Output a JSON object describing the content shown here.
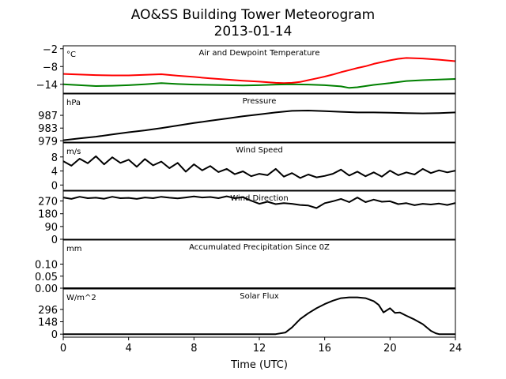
{
  "figure": {
    "title_line1": "AO&SS Building Tower Meteorogram",
    "title_line2": "2013-01-14",
    "xlabel": "Time (UTC)",
    "x_ticks": [
      "0",
      "4",
      "8",
      "12",
      "16",
      "20",
      "24"
    ],
    "xlim": [
      0,
      24
    ]
  },
  "chart_data": [
    {
      "type": "line",
      "title": "Air and Dewpoint Temperature",
      "unit_label": "°C",
      "ylim": [
        -17,
        -1
      ],
      "y_ticks": [
        -2,
        -8,
        -14
      ],
      "y_tick_labels": [
        "−2",
        "−8",
        "−14"
      ],
      "series": [
        {
          "color": "#ff0000",
          "x": [
            0,
            1,
            2,
            3,
            4,
            5,
            6,
            7,
            8,
            9,
            10,
            11,
            12,
            13,
            13.5,
            14,
            14.5,
            15,
            15.5,
            16,
            16.5,
            17,
            17.5,
            18,
            18.5,
            19,
            19.5,
            20,
            20.5,
            21,
            22,
            23,
            24
          ],
          "y": [
            -10.5,
            -10.7,
            -10.9,
            -11.0,
            -11.0,
            -10.8,
            -10.6,
            -11.1,
            -11.5,
            -12.0,
            -12.4,
            -12.8,
            -13.1,
            -13.5,
            -13.6,
            -13.5,
            -13.2,
            -12.6,
            -12.0,
            -11.4,
            -10.7,
            -9.9,
            -9.2,
            -8.5,
            -7.9,
            -7.1,
            -6.5,
            -5.9,
            -5.4,
            -5.1,
            -5.3,
            -5.7,
            -6.2
          ]
        },
        {
          "color": "#008000",
          "x": [
            0,
            1,
            2,
            3,
            4,
            5,
            6,
            7,
            8,
            9,
            10,
            11,
            12,
            13,
            14,
            15,
            16,
            17,
            17.5,
            18,
            18.5,
            19,
            20,
            21,
            22,
            23,
            24
          ],
          "y": [
            -14.0,
            -14.3,
            -14.6,
            -14.5,
            -14.3,
            -14.0,
            -13.6,
            -13.9,
            -14.1,
            -14.2,
            -14.3,
            -14.4,
            -14.3,
            -14.1,
            -14.0,
            -14.1,
            -14.3,
            -14.7,
            -15.2,
            -15.0,
            -14.6,
            -14.2,
            -13.6,
            -12.9,
            -12.6,
            -12.4,
            -12.2
          ]
        }
      ]
    },
    {
      "type": "line",
      "title": "Pressure",
      "unit_label": "hPa",
      "ylim": [
        978.6,
        993.7
      ],
      "y_ticks": [
        979,
        983,
        987
      ],
      "y_tick_labels": [
        "979",
        "983",
        "987"
      ],
      "series": [
        {
          "color": "#000000",
          "x": [
            0,
            1,
            2,
            3,
            4,
            5,
            6,
            7,
            8,
            9,
            10,
            11,
            12,
            13,
            14,
            15,
            16,
            17,
            18,
            19,
            20,
            21,
            22,
            23,
            24
          ],
          "y": [
            979.2,
            979.8,
            980.3,
            981.0,
            981.7,
            982.3,
            983.0,
            983.8,
            984.6,
            985.3,
            986.0,
            986.7,
            987.3,
            987.9,
            988.4,
            988.5,
            988.3,
            988.1,
            987.9,
            987.9,
            987.8,
            987.7,
            987.6,
            987.7,
            987.9
          ]
        }
      ]
    },
    {
      "type": "line",
      "title": "Wind Speed",
      "unit_label": "m/s",
      "ylim": [
        -1.5,
        12.0
      ],
      "y_ticks": [
        0,
        4,
        8
      ],
      "y_tick_labels": [
        "0",
        "4",
        "8"
      ],
      "series": [
        {
          "color": "#000000",
          "x": [
            0,
            0.5,
            1,
            1.5,
            2,
            2.5,
            3,
            3.5,
            4,
            4.5,
            5,
            5.5,
            6,
            6.5,
            7,
            7.5,
            8,
            8.5,
            9,
            9.5,
            10,
            10.5,
            11,
            11.5,
            12,
            12.5,
            13,
            13.5,
            14,
            14.5,
            15,
            15.5,
            16,
            16.5,
            17,
            17.5,
            18,
            18.5,
            19,
            19.5,
            20,
            20.5,
            21,
            21.5,
            22,
            22.5,
            23,
            23.5,
            24
          ],
          "y": [
            6.8,
            5.5,
            7.5,
            6.2,
            8.2,
            5.9,
            7.9,
            6.3,
            7.2,
            5.2,
            7.4,
            5.6,
            6.7,
            4.8,
            6.3,
            3.8,
            5.9,
            4.2,
            5.4,
            3.7,
            4.6,
            3.1,
            3.9,
            2.5,
            3.2,
            2.8,
            4.6,
            2.4,
            3.4,
            2.0,
            3.0,
            2.2,
            2.6,
            3.2,
            4.4,
            2.7,
            3.8,
            2.5,
            3.6,
            2.4,
            4.1,
            2.8,
            3.6,
            3.0,
            4.6,
            3.4,
            4.2,
            3.6,
            4.1
          ]
        }
      ]
    },
    {
      "type": "line",
      "title": "Wind Direction",
      "unit_label": "",
      "ylim": [
        0,
        340
      ],
      "y_ticks": [
        0,
        90,
        180,
        270
      ],
      "y_tick_labels": [
        "0",
        "90",
        "180",
        "270"
      ],
      "series": [
        {
          "color": "#000000",
          "x": [
            0,
            0.5,
            1,
            1.5,
            2,
            2.5,
            3,
            3.5,
            4,
            4.5,
            5,
            5.5,
            6,
            6.5,
            7,
            7.5,
            8,
            8.5,
            9,
            9.5,
            10,
            10.5,
            11,
            11.5,
            12,
            12.5,
            13,
            13.5,
            14,
            14.5,
            15,
            15.5,
            16,
            16.5,
            17,
            17.5,
            18,
            18.5,
            19,
            19.5,
            20,
            20.5,
            21,
            21.5,
            22,
            22.5,
            23,
            23.5,
            24
          ],
          "y": [
            295,
            285,
            300,
            290,
            293,
            286,
            300,
            290,
            292,
            285,
            295,
            290,
            300,
            293,
            288,
            295,
            302,
            295,
            298,
            290,
            303,
            290,
            297,
            272,
            250,
            265,
            248,
            255,
            250,
            242,
            238,
            220,
            255,
            268,
            285,
            262,
            295,
            262,
            280,
            265,
            268,
            248,
            255,
            240,
            250,
            245,
            252,
            242,
            256
          ]
        }
      ]
    },
    {
      "type": "line",
      "title": "Accumulated Precipitation Since 0Z",
      "unit_label": "mm",
      "ylim": [
        0,
        0.2
      ],
      "y_ticks": [
        0.0,
        0.05,
        0.1
      ],
      "y_tick_labels": [
        "0.00",
        "0.05",
        "0.10"
      ],
      "series": [
        {
          "color": "#000000",
          "x": [
            0,
            24
          ],
          "y": [
            0.0,
            0.0
          ]
        }
      ]
    },
    {
      "type": "line",
      "title": "Solar Flux",
      "unit_label": "W/m^2",
      "ylim": [
        -36,
        540
      ],
      "y_ticks": [
        0,
        148,
        296
      ],
      "y_tick_labels": [
        "0",
        "148",
        "296"
      ],
      "series": [
        {
          "color": "#000000",
          "x": [
            0,
            13,
            13.6,
            14,
            14.5,
            15,
            15.5,
            16,
            16.5,
            17,
            17.5,
            18,
            18.5,
            19,
            19.3,
            19.6,
            20,
            20.3,
            20.6,
            21,
            21.5,
            22,
            22.5,
            22.8,
            23,
            24
          ],
          "y": [
            0,
            0,
            20,
            80,
            180,
            250,
            310,
            360,
            400,
            430,
            440,
            440,
            430,
            395,
            350,
            260,
            310,
            255,
            260,
            220,
            175,
            120,
            40,
            10,
            0,
            0
          ]
        }
      ]
    }
  ]
}
